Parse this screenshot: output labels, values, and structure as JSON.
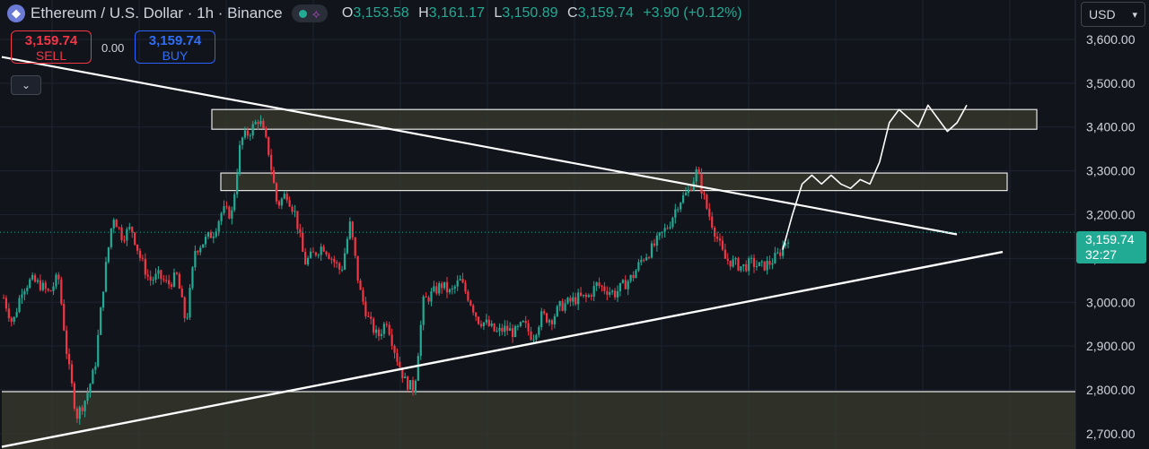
{
  "header": {
    "title": "Ethereum / U.S. Dollar · 1h · Binance",
    "open_key": "O",
    "open": "3,153.58",
    "high_key": "H",
    "high": "3,161.17",
    "low_key": "L",
    "low": "3,150.89",
    "close_key": "C",
    "close": "3,159.74",
    "change": "+3.90 (+0.12%)"
  },
  "trade": {
    "sell_price": "3,159.74",
    "sell_label": "SELL",
    "spread": "0.00",
    "buy_price": "3,159.74",
    "buy_label": "BUY"
  },
  "currency": "USD",
  "price_badge": {
    "price": "3,159.74",
    "countdown": "32:27"
  },
  "colors": {
    "up": "#22ab94",
    "down": "#f23645",
    "buy": "#2962ff",
    "background": "#12141c",
    "zone": "#3a3b2e"
  },
  "chart_data": {
    "type": "candlestick",
    "symbol": "ETHUSD",
    "interval": "1h",
    "ylim": [
      2665,
      3690
    ],
    "y_ticks": [
      "3,600.00",
      "3,500.00",
      "3,400.00",
      "3,300.00",
      "3,200.00",
      "3,100.00",
      "3,000.00",
      "2,900.00",
      "2,800.00",
      "2,700.00"
    ],
    "y_tick_values": [
      3600,
      3500,
      3400,
      3300,
      3200,
      3100,
      3000,
      2900,
      2800,
      2700
    ],
    "current_price": 3159.74,
    "price_path": [
      3010,
      2950,
      3030,
      3050,
      3040,
      3020,
      3060,
      2870,
      2740,
      2780,
      2850,
      3050,
      3200,
      3150,
      3170,
      3100,
      3050,
      3060,
      3040,
      3060,
      2950,
      3120,
      3140,
      3160,
      3210,
      3200,
      3370,
      3390,
      3420,
      3350,
      3220,
      3250,
      3200,
      3090,
      3110,
      3130,
      3100,
      3070,
      3180,
      3030,
      2960,
      2920,
      2960,
      2880,
      2820,
      2800,
      3000,
      3020,
      3040,
      3020,
      3050,
      3010,
      2960,
      2950,
      2930,
      2940,
      2930,
      2950,
      2920,
      2970,
      2960,
      2990,
      3000,
      3010,
      3010,
      3040,
      3030,
      3020,
      3040,
      3060,
      3100,
      3120,
      3150,
      3180,
      3230,
      3250,
      3300,
      3220,
      3160,
      3100,
      3090,
      3080,
      3090,
      3080,
      3090,
      3110,
      3150
    ],
    "projection_path": [
      3120,
      3200,
      3270,
      3290,
      3270,
      3290,
      3270,
      3260,
      3280,
      3270,
      3320,
      3410,
      3440,
      3420,
      3400,
      3450,
      3420,
      3390,
      3410,
      3450
    ],
    "zones": [
      {
        "low": 3395,
        "high": 3440
      },
      {
        "low": 3255,
        "high": 3295
      },
      {
        "low": 2650,
        "high": 2796
      }
    ],
    "trendlines": [
      {
        "name": "descending-resistance",
        "from": 3560,
        "to": 3155
      },
      {
        "name": "ascending-support",
        "from": 2670,
        "to": 3115
      }
    ]
  }
}
